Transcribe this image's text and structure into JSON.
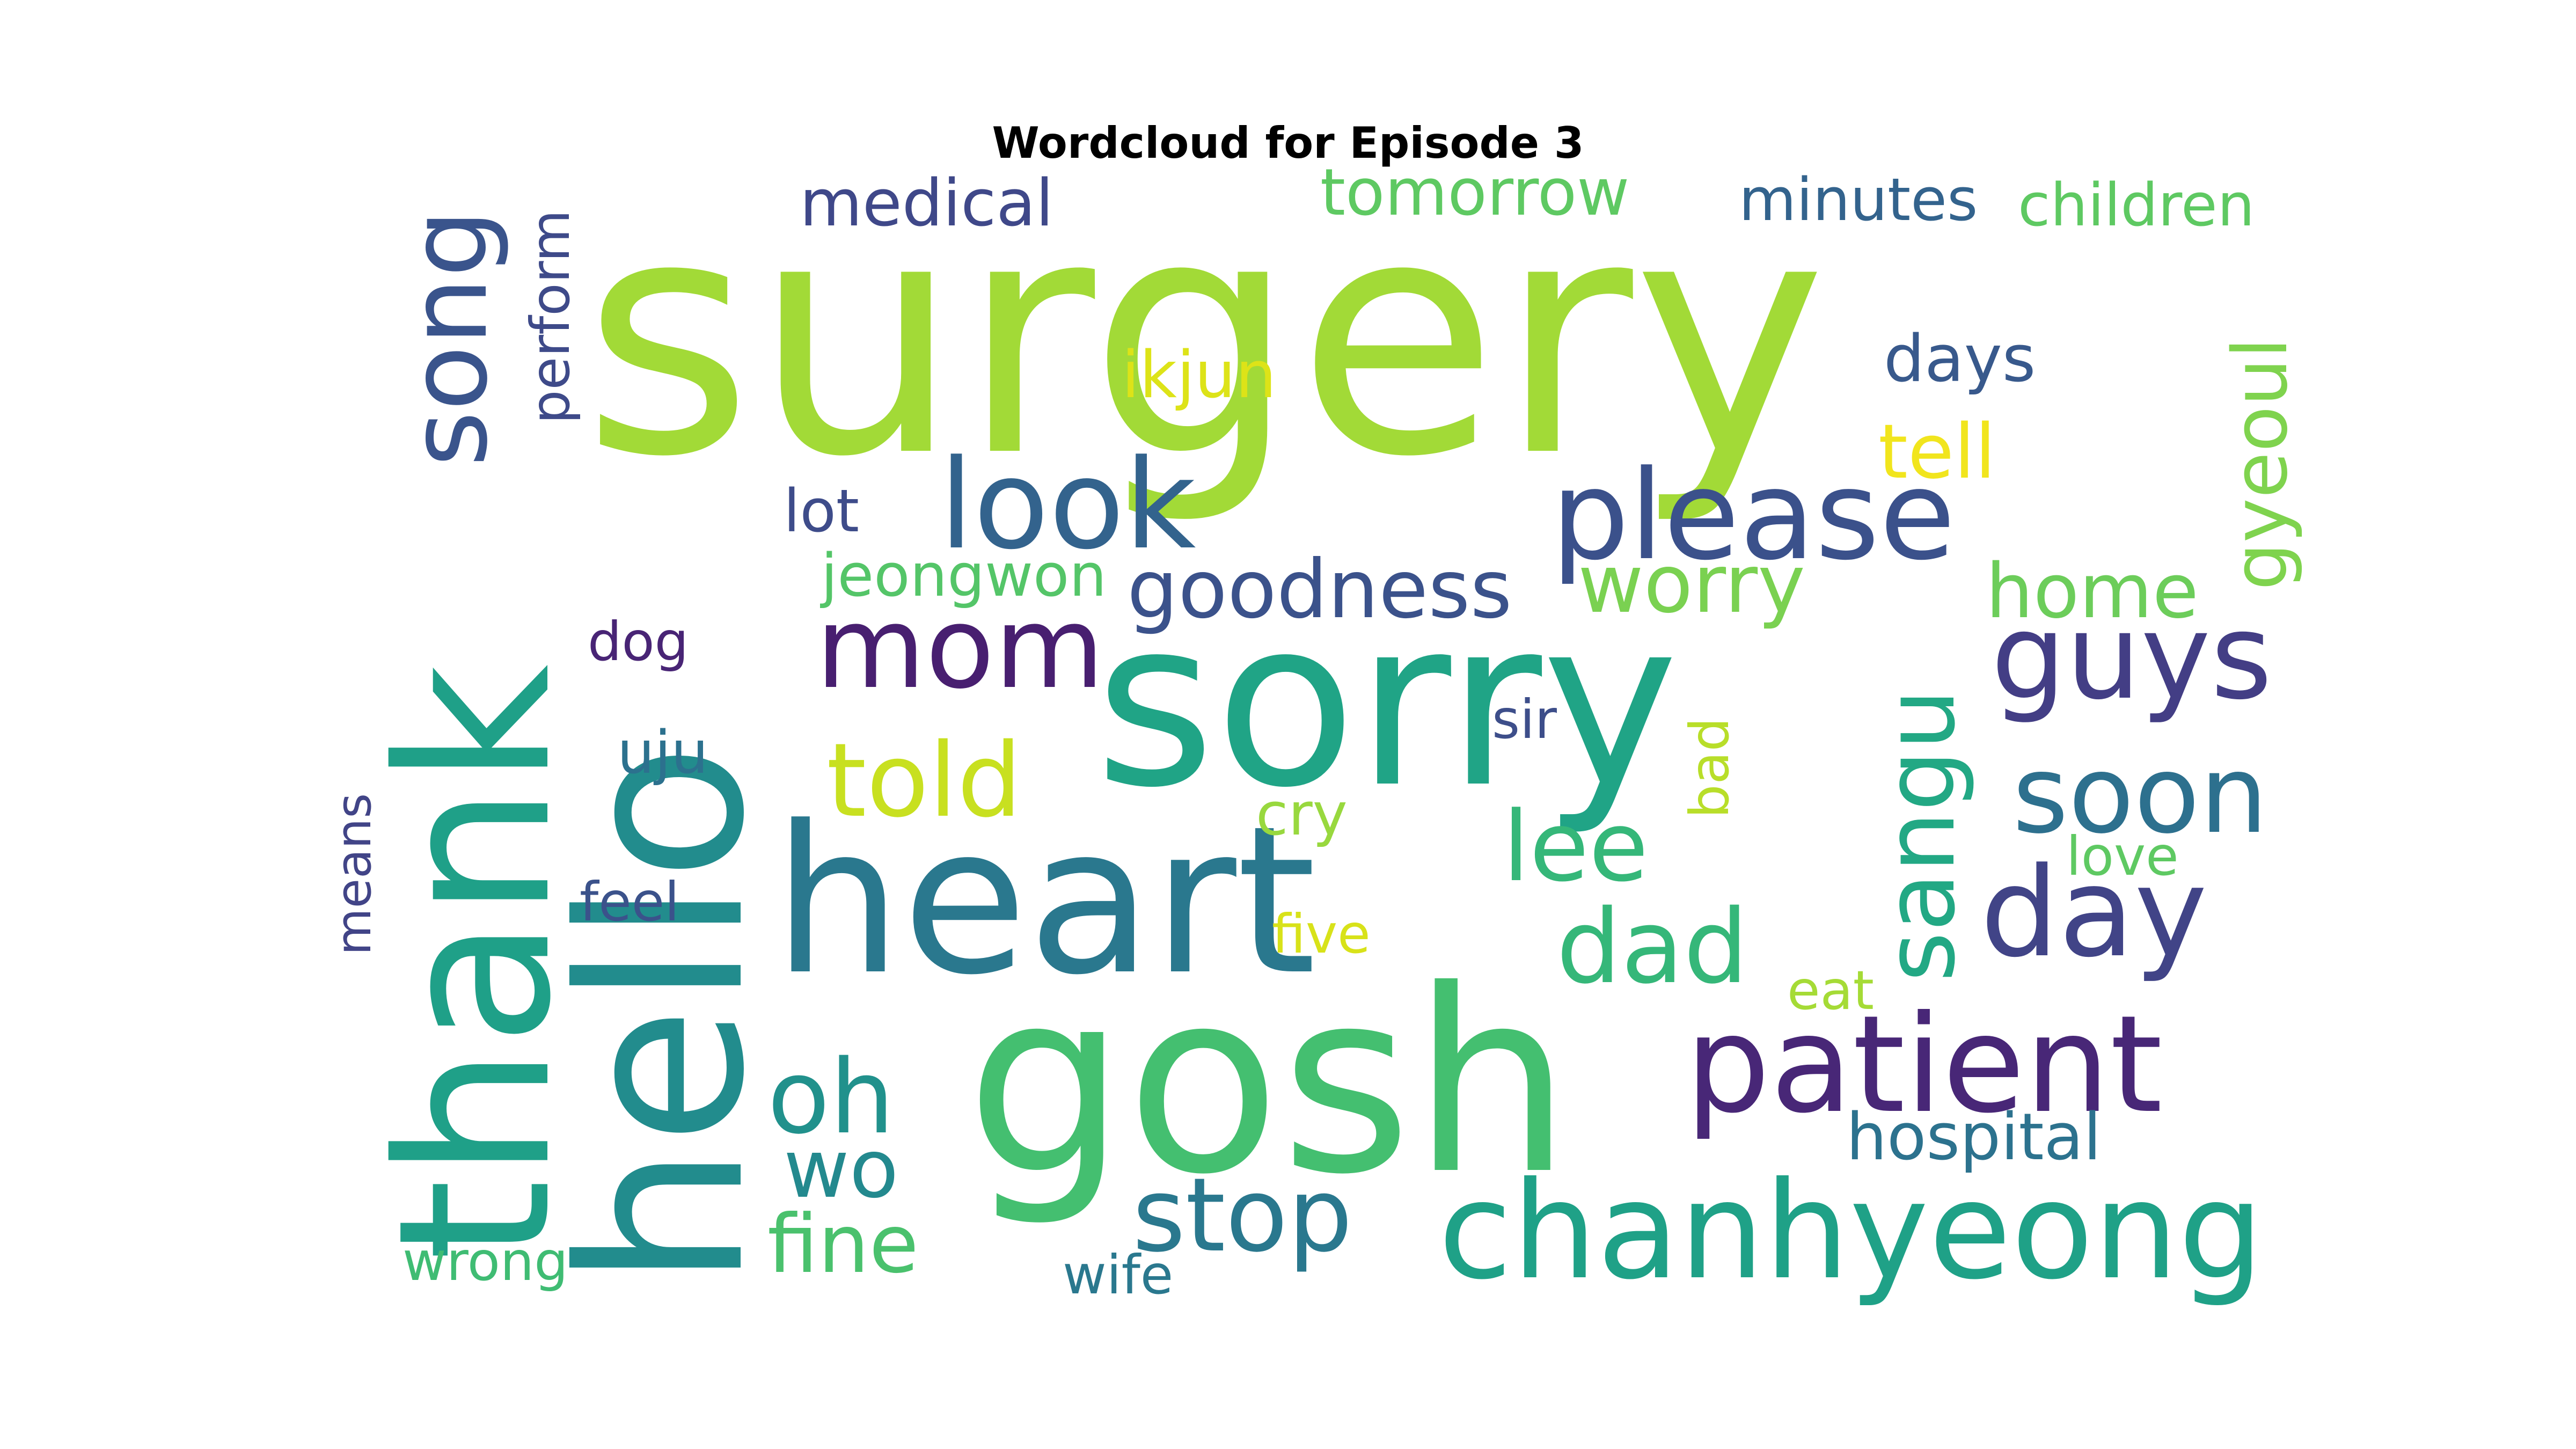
{
  "title": "Wordcloud for Episode 3",
  "words": [
    {
      "text": "surgery",
      "color": "#a2da37"
    },
    {
      "text": "sorry",
      "color": "#20a486"
    },
    {
      "text": "heart",
      "color": "#2a788e"
    },
    {
      "text": "gosh",
      "color": "#44bf70"
    },
    {
      "text": "hello",
      "color": "#228c8d"
    },
    {
      "text": "thank",
      "color": "#1fa088"
    },
    {
      "text": "chanhyeong",
      "color": "#1fa187"
    },
    {
      "text": "patient",
      "color": "#482777"
    },
    {
      "text": "please",
      "color": "#3b518b"
    },
    {
      "text": "look",
      "color": "#33638d"
    },
    {
      "text": "day",
      "color": "#414487"
    },
    {
      "text": "guys",
      "color": "#433e85"
    },
    {
      "text": "soon",
      "color": "#2d708e"
    },
    {
      "text": "song",
      "color": "#3a548c"
    },
    {
      "text": "mom",
      "color": "#481f70"
    },
    {
      "text": "told",
      "color": "#c8e020"
    },
    {
      "text": "stop",
      "color": "#2a788e"
    },
    {
      "text": "dad",
      "color": "#35b779"
    },
    {
      "text": "lee",
      "color": "#35b779"
    },
    {
      "text": "sangu",
      "color": "#22a884"
    },
    {
      "text": "oh",
      "color": "#21918c"
    },
    {
      "text": "goodness",
      "color": "#3b528b"
    },
    {
      "text": "worry",
      "color": "#7ad151"
    },
    {
      "text": "fine",
      "color": "#4ac16d"
    },
    {
      "text": "wo",
      "color": "#23898e"
    },
    {
      "text": "home",
      "color": "#6ccd5a"
    },
    {
      "text": "hospital",
      "color": "#2c728e"
    },
    {
      "text": "tell",
      "color": "#f1e51d"
    },
    {
      "text": "gyeoul",
      "color": "#7fd34e"
    },
    {
      "text": "medical",
      "color": "#3f4889"
    },
    {
      "text": "tomorrow",
      "color": "#5ec962"
    },
    {
      "text": "days",
      "color": "#38598c"
    },
    {
      "text": "minutes",
      "color": "#33638d"
    },
    {
      "text": "children",
      "color": "#5ec962"
    },
    {
      "text": "ikjun",
      "color": "#dde318"
    },
    {
      "text": "jeongwon",
      "color": "#54c568"
    },
    {
      "text": "lot",
      "color": "#3e4c8a"
    },
    {
      "text": "dog",
      "color": "#482475"
    },
    {
      "text": "uju",
      "color": "#2c718e"
    },
    {
      "text": "sir",
      "color": "#3d4e8a"
    },
    {
      "text": "bad",
      "color": "#b8de29"
    },
    {
      "text": "cry",
      "color": "#98d83e"
    },
    {
      "text": "love",
      "color": "#5ec962"
    },
    {
      "text": "feel",
      "color": "#3b528b"
    },
    {
      "text": "five",
      "color": "#d8e219"
    },
    {
      "text": "eat",
      "color": "#a5db36"
    },
    {
      "text": "means",
      "color": "#414487"
    },
    {
      "text": "perform",
      "color": "#3e4a89"
    },
    {
      "text": "wrong",
      "color": "#3fbc73"
    },
    {
      "text": "wife",
      "color": "#2a788e"
    }
  ]
}
